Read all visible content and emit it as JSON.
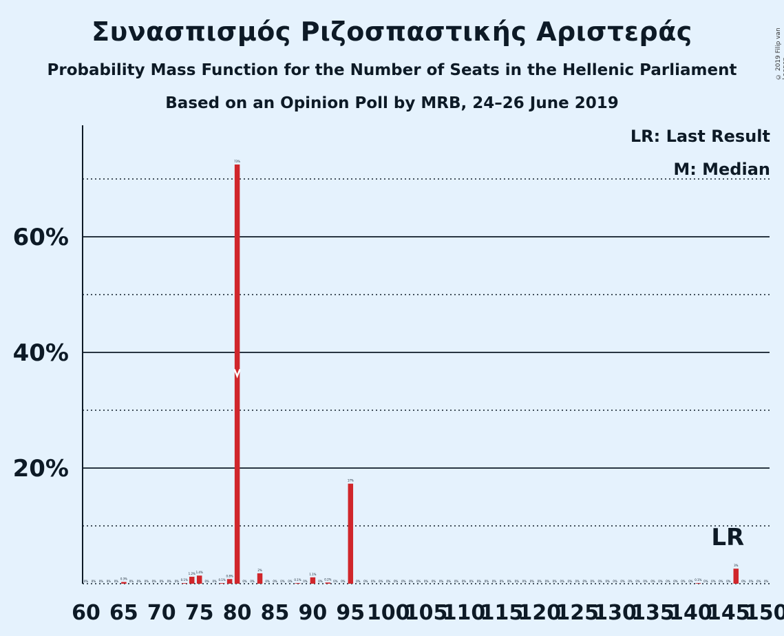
{
  "title": "Συνασπισμός Ριζοσπαστικής Αριστεράς",
  "subtitle": "Probability Mass Function for the Number of Seats in the Hellenic Parliament",
  "subtitle2": "Based on an Opinion Poll by MRB, 24–26 June 2019",
  "copyright": "© 2019 Filip van Laenen",
  "legend": {
    "last_result": "LR: Last Result",
    "median": "M: Median"
  },
  "colors": {
    "background": "#e5f2fd",
    "bar": "#d0262b",
    "text": "#0d1a26"
  },
  "chart_data": {
    "type": "bar",
    "x_min": 60,
    "x_max": 150,
    "xticks": [
      60,
      65,
      70,
      75,
      80,
      85,
      90,
      95,
      100,
      105,
      110,
      115,
      120,
      125,
      130,
      135,
      140,
      145,
      150
    ],
    "yticks": [
      {
        "value": 20,
        "label": "20%"
      },
      {
        "value": 40,
        "label": "40%"
      },
      {
        "value": 60,
        "label": "60%"
      }
    ],
    "dotted_gridlines": [
      10,
      30,
      50,
      70
    ],
    "solid_gridlines": [
      20,
      40,
      60
    ],
    "ylim": [
      0,
      79
    ],
    "bars": [
      {
        "x": 60,
        "value": 0,
        "label": "0%"
      },
      {
        "x": 61,
        "value": 0,
        "label": "0%"
      },
      {
        "x": 62,
        "value": 0,
        "label": "0%"
      },
      {
        "x": 63,
        "value": 0,
        "label": "0%"
      },
      {
        "x": 64,
        "value": 0,
        "label": "0%"
      },
      {
        "x": 65,
        "value": 0.3,
        "label": "0.3%"
      },
      {
        "x": 66,
        "value": 0,
        "label": "0%"
      },
      {
        "x": 67,
        "value": 0,
        "label": "0%"
      },
      {
        "x": 68,
        "value": 0,
        "label": "0%"
      },
      {
        "x": 69,
        "value": 0,
        "label": "0%"
      },
      {
        "x": 70,
        "value": 0,
        "label": "0%"
      },
      {
        "x": 71,
        "value": 0,
        "label": "0%"
      },
      {
        "x": 72,
        "value": 0,
        "label": "0%"
      },
      {
        "x": 73,
        "value": 0.1,
        "label": "0.1%"
      },
      {
        "x": 74,
        "value": 1.2,
        "label": "1.2%"
      },
      {
        "x": 75,
        "value": 1.4,
        "label": "1.4%"
      },
      {
        "x": 76,
        "value": 0,
        "label": "0%"
      },
      {
        "x": 77,
        "value": 0,
        "label": "0%"
      },
      {
        "x": 78,
        "value": 0.1,
        "label": "0.1%"
      },
      {
        "x": 79,
        "value": 0.8,
        "label": "0.8%"
      },
      {
        "x": 80,
        "value": 72.5,
        "label": "73%"
      },
      {
        "x": 81,
        "value": 0,
        "label": "0%"
      },
      {
        "x": 82,
        "value": 0,
        "label": "0%"
      },
      {
        "x": 83,
        "value": 1.8,
        "label": "2%"
      },
      {
        "x": 84,
        "value": 0,
        "label": "0%"
      },
      {
        "x": 85,
        "value": 0,
        "label": "0%"
      },
      {
        "x": 86,
        "value": 0,
        "label": "0%"
      },
      {
        "x": 87,
        "value": 0,
        "label": "0%"
      },
      {
        "x": 88,
        "value": 0.1,
        "label": "0.1%"
      },
      {
        "x": 89,
        "value": 0,
        "label": "0%"
      },
      {
        "x": 90,
        "value": 1.1,
        "label": "1.1%"
      },
      {
        "x": 91,
        "value": 0,
        "label": "0%"
      },
      {
        "x": 92,
        "value": 0.2,
        "label": "0.2%"
      },
      {
        "x": 93,
        "value": 0,
        "label": "0%"
      },
      {
        "x": 94,
        "value": 0,
        "label": "0%"
      },
      {
        "x": 95,
        "value": 17.3,
        "label": "17%"
      },
      {
        "x": 96,
        "value": 0,
        "label": "0%"
      },
      {
        "x": 97,
        "value": 0,
        "label": "0%"
      },
      {
        "x": 98,
        "value": 0,
        "label": "0%"
      },
      {
        "x": 99,
        "value": 0,
        "label": "0%"
      },
      {
        "x": 100,
        "value": 0,
        "label": "0%"
      },
      {
        "x": 101,
        "value": 0,
        "label": "0%"
      },
      {
        "x": 102,
        "value": 0,
        "label": "0%"
      },
      {
        "x": 103,
        "value": 0,
        "label": "0%"
      },
      {
        "x": 104,
        "value": 0,
        "label": "0%"
      },
      {
        "x": 105,
        "value": 0,
        "label": "0%"
      },
      {
        "x": 106,
        "value": 0,
        "label": "0%"
      },
      {
        "x": 107,
        "value": 0,
        "label": "0%"
      },
      {
        "x": 108,
        "value": 0,
        "label": "0%"
      },
      {
        "x": 109,
        "value": 0,
        "label": "0%"
      },
      {
        "x": 110,
        "value": 0,
        "label": "0%"
      },
      {
        "x": 111,
        "value": 0,
        "label": "0%"
      },
      {
        "x": 112,
        "value": 0,
        "label": "0%"
      },
      {
        "x": 113,
        "value": 0,
        "label": "0%"
      },
      {
        "x": 114,
        "value": 0,
        "label": "0%"
      },
      {
        "x": 115,
        "value": 0,
        "label": "0%"
      },
      {
        "x": 116,
        "value": 0,
        "label": "0%"
      },
      {
        "x": 117,
        "value": 0,
        "label": "0%"
      },
      {
        "x": 118,
        "value": 0,
        "label": "0%"
      },
      {
        "x": 119,
        "value": 0,
        "label": "0%"
      },
      {
        "x": 120,
        "value": 0,
        "label": "0%"
      },
      {
        "x": 121,
        "value": 0,
        "label": "0%"
      },
      {
        "x": 122,
        "value": 0,
        "label": "0%"
      },
      {
        "x": 123,
        "value": 0,
        "label": "0%"
      },
      {
        "x": 124,
        "value": 0,
        "label": "0%"
      },
      {
        "x": 125,
        "value": 0,
        "label": "0%"
      },
      {
        "x": 126,
        "value": 0,
        "label": "0%"
      },
      {
        "x": 127,
        "value": 0,
        "label": "0%"
      },
      {
        "x": 128,
        "value": 0,
        "label": "0%"
      },
      {
        "x": 129,
        "value": 0,
        "label": "0%"
      },
      {
        "x": 130,
        "value": 0,
        "label": "0%"
      },
      {
        "x": 131,
        "value": 0,
        "label": "0%"
      },
      {
        "x": 132,
        "value": 0,
        "label": "0%"
      },
      {
        "x": 133,
        "value": 0,
        "label": "0%"
      },
      {
        "x": 134,
        "value": 0,
        "label": "0%"
      },
      {
        "x": 135,
        "value": 0,
        "label": "0%"
      },
      {
        "x": 136,
        "value": 0,
        "label": "0%"
      },
      {
        "x": 137,
        "value": 0,
        "label": "0%"
      },
      {
        "x": 138,
        "value": 0,
        "label": "0%"
      },
      {
        "x": 139,
        "value": 0,
        "label": "0%"
      },
      {
        "x": 140,
        "value": 0,
        "label": "0%"
      },
      {
        "x": 141,
        "value": 0.1,
        "label": "0.1%"
      },
      {
        "x": 142,
        "value": 0,
        "label": "0%"
      },
      {
        "x": 143,
        "value": 0,
        "label": "0%"
      },
      {
        "x": 144,
        "value": 0,
        "label": "0%"
      },
      {
        "x": 145,
        "value": 0,
        "label": "0%"
      },
      {
        "x": 146,
        "value": 2.6,
        "label": "3%"
      },
      {
        "x": 147,
        "value": 0,
        "label": "0%"
      },
      {
        "x": 148,
        "value": 0,
        "label": "0%"
      },
      {
        "x": 149,
        "value": 0,
        "label": "0%"
      },
      {
        "x": 150,
        "value": 0,
        "label": "0%"
      }
    ],
    "median": {
      "x": 80,
      "marker": "M"
    },
    "last_result": {
      "x": 146,
      "label": "LR"
    }
  }
}
